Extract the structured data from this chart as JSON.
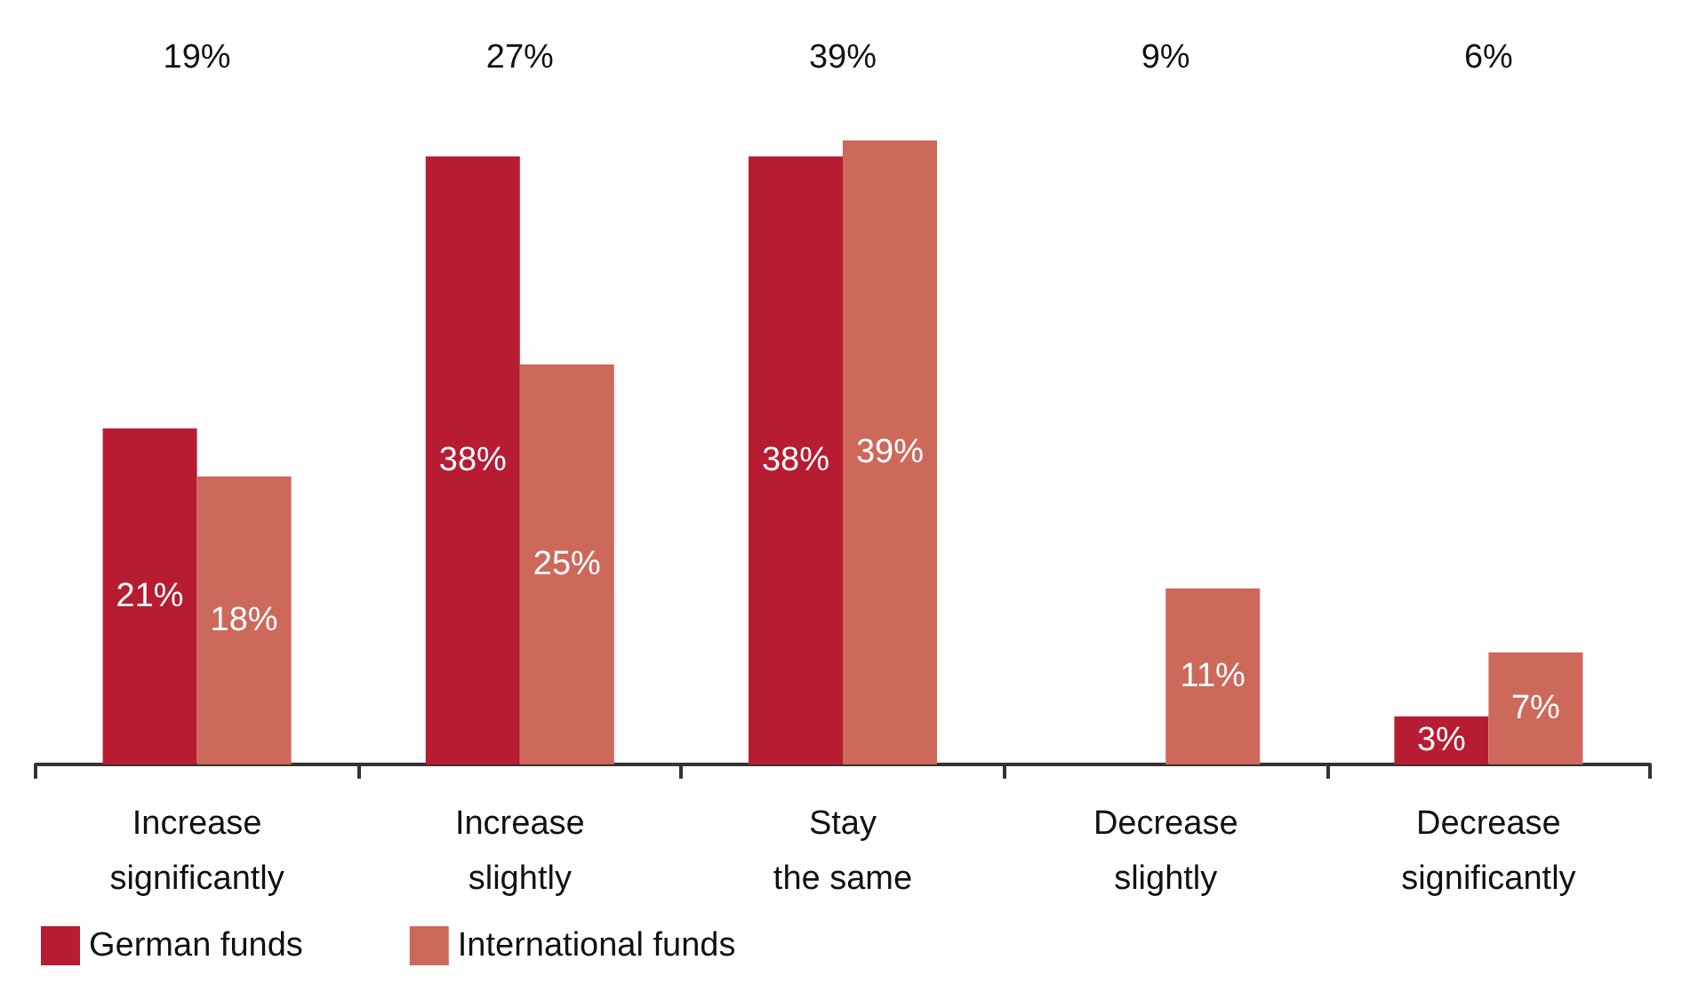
{
  "chart_data": {
    "type": "bar",
    "categories": [
      "Increase\nsignificantly",
      "Increase\nslightly",
      "Stay\nthe same",
      "Decrease\nslightly",
      "Decrease\nsignificantly"
    ],
    "series": [
      {
        "name": "German funds",
        "color": "#b71c32",
        "values": [
          21,
          38,
          38,
          null,
          3
        ],
        "value_labels": [
          "21%",
          "38%",
          "38%",
          null,
          "3%"
        ]
      },
      {
        "name": "International funds",
        "color": "#cd695b",
        "values": [
          18,
          25,
          39,
          11,
          7
        ],
        "value_labels": [
          "18%",
          "25%",
          "39%",
          "11%",
          "7%"
        ]
      }
    ],
    "annotations": [
      "19%",
      "27%",
      "39%",
      "9%",
      "6%"
    ],
    "legend": "bottom left",
    "grid": false,
    "tick_labels": "x"
  }
}
